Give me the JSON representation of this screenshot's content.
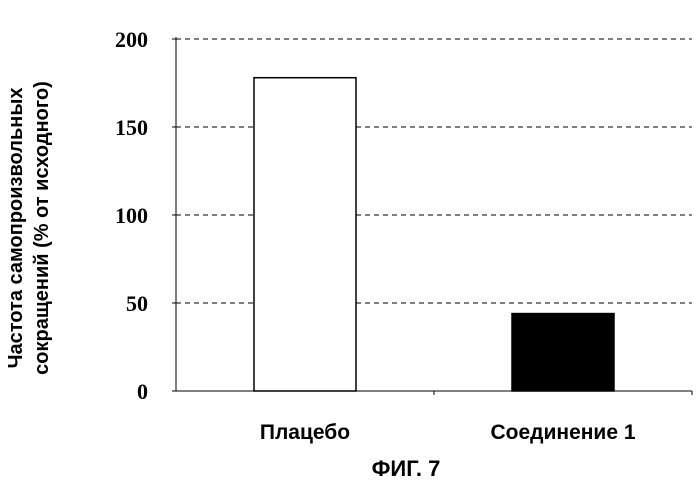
{
  "chart_data": {
    "type": "bar",
    "categories": [
      "Плацебо",
      "Соединение 1"
    ],
    "values": [
      178,
      44
    ],
    "bar_colors": [
      "#ffffff",
      "#000000"
    ],
    "ylabel_lines": [
      "Частота самопроизвольных",
      "сокращений (% от исходного)"
    ],
    "ylim": [
      0,
      200
    ],
    "yticks": [
      0,
      50,
      100,
      150,
      200
    ],
    "grid": "dashed horizontal",
    "caption": "ФИГ. 7"
  }
}
